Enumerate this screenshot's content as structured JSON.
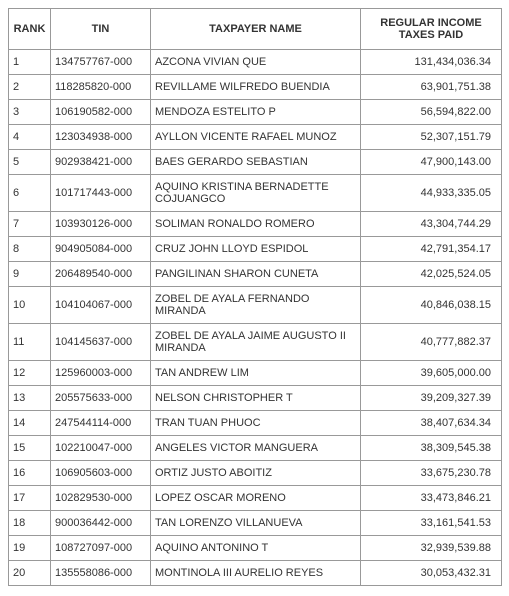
{
  "table": {
    "columns": {
      "rank": "RANK",
      "tin": "TIN",
      "name": "TAXPAYER NAME",
      "tax": "REGULAR INCOME TAXES PAID"
    },
    "rows": [
      {
        "rank": "1",
        "tin": "134757767-000",
        "name": "AZCONA VIVIAN QUE",
        "tax": "131,434,036.34"
      },
      {
        "rank": "2",
        "tin": "118285820-000",
        "name": "REVILLAME WILFREDO BUENDIA",
        "tax": "63,901,751.38"
      },
      {
        "rank": "3",
        "tin": "106190582-000",
        "name": "MENDOZA ESTELITO P",
        "tax": "56,594,822.00"
      },
      {
        "rank": "4",
        "tin": "123034938-000",
        "name": "AYLLON VICENTE RAFAEL MUNOZ",
        "tax": "52,307,151.79"
      },
      {
        "rank": "5",
        "tin": "902938421-000",
        "name": "BAES GERARDO SEBASTIAN",
        "tax": "47,900,143.00"
      },
      {
        "rank": "6",
        "tin": "101717443-000",
        "name": "AQUINO KRISTINA BERNADETTE COJUANGCO",
        "tax": "44,933,335.05"
      },
      {
        "rank": "7",
        "tin": "103930126-000",
        "name": "SOLIMAN RONALDO ROMERO",
        "tax": "43,304,744.29"
      },
      {
        "rank": "8",
        "tin": "904905084-000",
        "name": "CRUZ JOHN LLOYD ESPIDOL",
        "tax": "42,791,354.17"
      },
      {
        "rank": "9",
        "tin": "206489540-000",
        "name": "PANGILINAN SHARON CUNETA",
        "tax": "42,025,524.05"
      },
      {
        "rank": "10",
        "tin": "104104067-000",
        "name": "ZOBEL DE AYALA FERNANDO MIRANDA",
        "tax": "40,846,038.15"
      },
      {
        "rank": "11",
        "tin": "104145637-000",
        "name": "ZOBEL DE AYALA JAIME AUGUSTO II MIRANDA",
        "tax": "40,777,882.37"
      },
      {
        "rank": "12",
        "tin": "125960003-000",
        "name": "TAN ANDREW LIM",
        "tax": "39,605,000.00"
      },
      {
        "rank": "13",
        "tin": "205575633-000",
        "name": "NELSON CHRISTOPHER T",
        "tax": "39,209,327.39"
      },
      {
        "rank": "14",
        "tin": "247544114-000",
        "name": "TRAN TUAN PHUOC",
        "tax": "38,407,634.34"
      },
      {
        "rank": "15",
        "tin": "102210047-000",
        "name": "ANGELES VICTOR MANGUERA",
        "tax": "38,309,545.38"
      },
      {
        "rank": "16",
        "tin": "106905603-000",
        "name": "ORTIZ JUSTO ABOITIZ",
        "tax": "33,675,230.78"
      },
      {
        "rank": "17",
        "tin": "102829530-000",
        "name": "LOPEZ OSCAR MORENO",
        "tax": "33,473,846.21"
      },
      {
        "rank": "18",
        "tin": "900036442-000",
        "name": "TAN LORENZO VILLANUEVA",
        "tax": "33,161,541.53"
      },
      {
        "rank": "19",
        "tin": "108727097-000",
        "name": "AQUINO ANTONINO T",
        "tax": "32,939,539.88"
      },
      {
        "rank": "20",
        "tin": "135558086-000",
        "name": "MONTINOLA III AURELIO REYES",
        "tax": "30,053,432.31"
      }
    ]
  }
}
